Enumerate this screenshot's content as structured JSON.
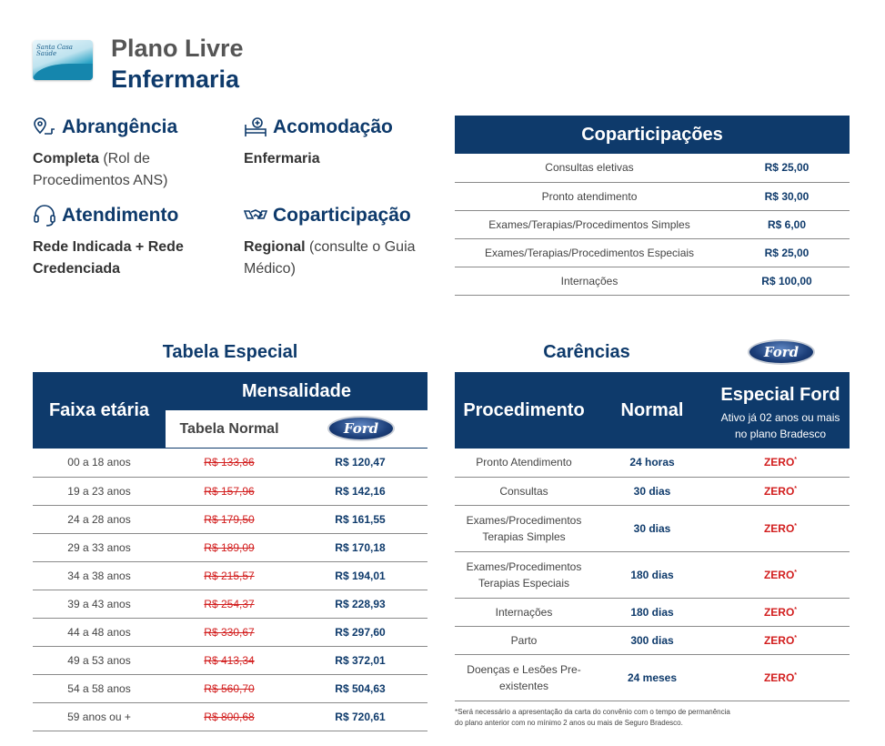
{
  "header": {
    "logo_text": "Santa Casa Saúde",
    "title_line1": "Plano Livre",
    "title_line2": "Enfermaria"
  },
  "features": [
    {
      "title": "Abrangência",
      "icon": "map-pin-icon",
      "bold": "Completa",
      "rest": " (Rol de Procedimentos ANS)"
    },
    {
      "title": "Acomodação",
      "icon": "hospital-bed-icon",
      "bold": "Enfermaria",
      "rest": ""
    },
    {
      "title": "Atendimento",
      "icon": "headset-icon",
      "bold": "Rede Indicada + Rede Credenciada",
      "rest": ""
    },
    {
      "title": "Coparticipação",
      "icon": "handshake-icon",
      "bold": "Regional",
      "rest": " (consulte o Guia Médico)"
    }
  ],
  "copart_table": {
    "title": "Coparticipações",
    "rows": [
      {
        "label": "Consultas eletivas",
        "value": "R$ 25,00"
      },
      {
        "label": "Pronto atendimento",
        "value": "R$ 30,00"
      },
      {
        "label": "Exames/Terapias/Procedimentos Simples",
        "value": "R$ 6,00"
      },
      {
        "label": "Exames/Terapias/Procedimentos Especiais",
        "value": "R$ 25,00"
      },
      {
        "label": "Internações",
        "value": "R$ 100,00"
      }
    ]
  },
  "tabela_especial": {
    "title": "Tabela Especial",
    "col_faixa": "Faixa etária",
    "col_mensalidade": "Mensalidade",
    "col_normal": "Tabela Normal",
    "ford_logo": "Ford",
    "rows": [
      {
        "faixa": "00 a 18 anos",
        "normal": "R$ 133,86",
        "ford": "R$ 120,47"
      },
      {
        "faixa": "19 a 23 anos",
        "normal": "R$ 157,96",
        "ford": "R$ 142,16"
      },
      {
        "faixa": "24 a 28 anos",
        "normal": "R$ 179,50",
        "ford": "R$ 161,55"
      },
      {
        "faixa": "29 a 33 anos",
        "normal": "R$ 189,09",
        "ford": "R$ 170,18"
      },
      {
        "faixa": "34 a 38 anos",
        "normal": "R$ 215,57",
        "ford": "R$ 194,01"
      },
      {
        "faixa": "39 a 43 anos",
        "normal": "R$ 254,37",
        "ford": "R$ 228,93"
      },
      {
        "faixa": "44 a 48 anos",
        "normal": "R$ 330,67",
        "ford": "R$ 297,60"
      },
      {
        "faixa": "49 a 53 anos",
        "normal": "R$ 413,34",
        "ford": "R$ 372,01"
      },
      {
        "faixa": "54 a 58 anos",
        "normal": "R$ 560,70",
        "ford": "R$ 504,63"
      },
      {
        "faixa": "59 anos ou +",
        "normal": "R$ 800,68",
        "ford": "R$ 720,61"
      }
    ]
  },
  "carencias": {
    "title": "Carências",
    "ford_logo": "Ford",
    "col_proc": "Procedimento",
    "col_normal": "Normal",
    "col_ford": "Especial Ford",
    "col_ford_sub": "Ativo já 02 anos ou mais no plano Bradesco",
    "rows": [
      {
        "proc": "Pronto Atendimento",
        "normal": "24 horas",
        "ford": "ZERO"
      },
      {
        "proc": "Consultas",
        "normal": "30 dias",
        "ford": "ZERO"
      },
      {
        "proc": "Exames/Procedimentos Terapias Simples",
        "normal": "30 dias",
        "ford": "ZERO"
      },
      {
        "proc": "Exames/Procedimentos Terapias Especiais",
        "normal": "180 dias",
        "ford": "ZERO"
      },
      {
        "proc": "Internações",
        "normal": "180 dias",
        "ford": "ZERO"
      },
      {
        "proc": "Parto",
        "normal": "300 dias",
        "ford": "ZERO"
      },
      {
        "proc": "Doenças e Lesões Pre-existentes",
        "normal": "24 meses",
        "ford": "ZERO"
      }
    ],
    "asterisk": "*",
    "footnote": "*Será necessário a apresentação da carta do convênio com o tempo de permanência do plano anterior com no mínimo 2 anos ou mais de Seguro Bradesco."
  },
  "colors": {
    "navy": "#0e3a6b",
    "red": "#d21e1e"
  }
}
